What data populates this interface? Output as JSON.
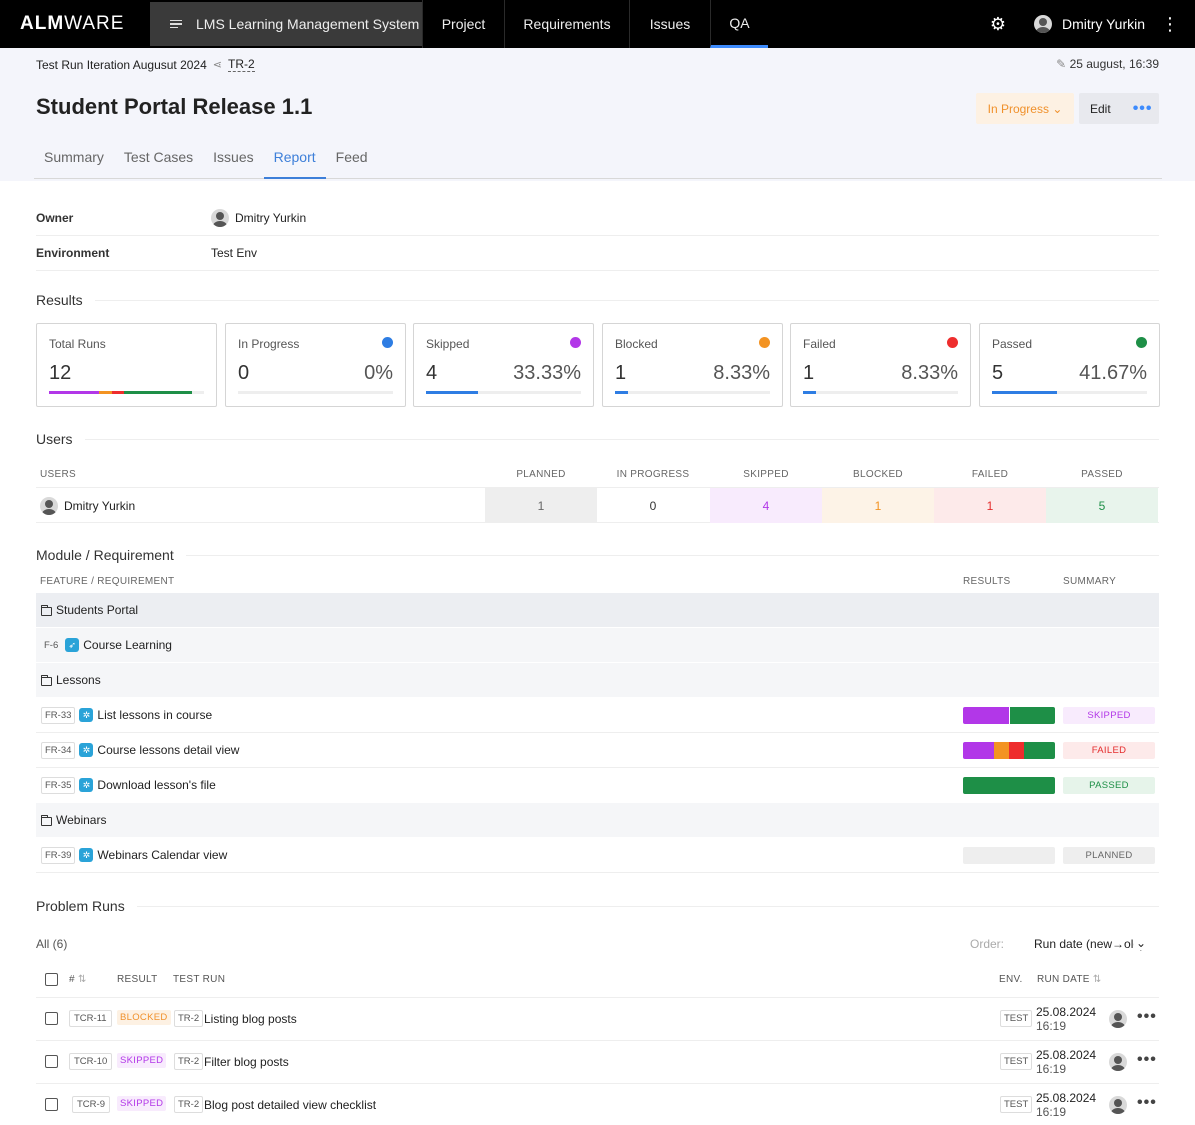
{
  "nav": {
    "logo_bold": "ALM",
    "logo_light": "WARE",
    "project": "LMS Learning Management System",
    "items": [
      "Project",
      "Requirements",
      "Issues",
      "QA"
    ],
    "user": "Dmitry Yurkin"
  },
  "header": {
    "breadcrumb": "Test Run Iteration Augusut 2024",
    "key": "TR-2",
    "edited": "25 august, 16:39",
    "title": "Student Portal Release 1.1",
    "status": "In Progress",
    "edit": "Edit",
    "tabs": [
      "Summary",
      "Test Cases",
      "Issues",
      "Report",
      "Feed"
    ],
    "active_tab": "Report"
  },
  "info": {
    "owner_label": "Owner",
    "owner": "Dmitry Yurkin",
    "env_label": "Environment",
    "env": "Test Env"
  },
  "results": {
    "title": "Results",
    "cards": [
      {
        "label": "Total Runs",
        "count": "12",
        "pct": "",
        "color": "",
        "fill": 0
      },
      {
        "label": "In Progress",
        "count": "0",
        "pct": "0%",
        "color": "#2e7de3",
        "fill": 0
      },
      {
        "label": "Skipped",
        "count": "4",
        "pct": "33.33%",
        "color": "#b237e8",
        "fill": 0.3333
      },
      {
        "label": "Blocked",
        "count": "1",
        "pct": "8.33%",
        "color": "#f39322",
        "fill": 0.0833
      },
      {
        "label": "Failed",
        "count": "1",
        "pct": "8.33%",
        "color": "#ee2d2d",
        "fill": 0.0833
      },
      {
        "label": "Passed",
        "count": "5",
        "pct": "41.67%",
        "color": "#1e8f47",
        "fill": 0.4167
      }
    ]
  },
  "users": {
    "title": "Users",
    "headers": [
      "USERS",
      "PLANNED",
      "IN PROGRESS",
      "SKIPPED",
      "BLOCKED",
      "FAILED",
      "PASSED"
    ],
    "rows": [
      {
        "name": "Dmitry Yurkin",
        "planned": "1",
        "in_progress": "0",
        "skipped": "4",
        "blocked": "1",
        "failed": "1",
        "passed": "5"
      }
    ]
  },
  "modules": {
    "title": "Module / Requirement",
    "headers": [
      "FEATURE / REQUIREMENT",
      "RESULTS",
      "SUMMARY"
    ],
    "rows": [
      {
        "type": "group",
        "name": "Students Portal"
      },
      {
        "type": "feature",
        "key": "F-6",
        "name": "Course Learning"
      },
      {
        "type": "group",
        "name": "Lessons"
      },
      {
        "type": "req",
        "key": "FR-33",
        "name": "List lessons in course",
        "summary": "SKIPPED"
      },
      {
        "type": "req",
        "key": "FR-34",
        "name": "Course lessons detail view",
        "summary": "FAILED"
      },
      {
        "type": "req",
        "key": "FR-35",
        "name": "Download lesson's file",
        "summary": "PASSED"
      },
      {
        "type": "group",
        "name": "Webinars"
      },
      {
        "type": "req",
        "key": "FR-39",
        "name": "Webinars Calendar view",
        "summary": "PLANNED"
      }
    ]
  },
  "problems": {
    "title": "Problem Runs",
    "all": "All (6)",
    "order_label": "Order:",
    "order_value": "Run date (new→old)",
    "headers": [
      "#",
      "RESULT",
      "TEST RUN",
      "ENV.",
      "RUN DATE"
    ],
    "rows": [
      {
        "key": "TCR-11",
        "result": "BLOCKED",
        "run": "TR-2",
        "name": "Listing blog posts",
        "env": "TEST",
        "date": "25.08.2024",
        "time": "16:19"
      },
      {
        "key": "TCR-10",
        "result": "SKIPPED",
        "run": "TR-2",
        "name": "Filter blog posts",
        "env": "TEST",
        "date": "25.08.2024",
        "time": "16:19"
      },
      {
        "key": "TCR-9",
        "result": "SKIPPED",
        "run": "TR-2",
        "name": "Blog post detailed view checklist",
        "env": "TEST",
        "date": "25.08.2024",
        "time": "16:19"
      }
    ]
  }
}
